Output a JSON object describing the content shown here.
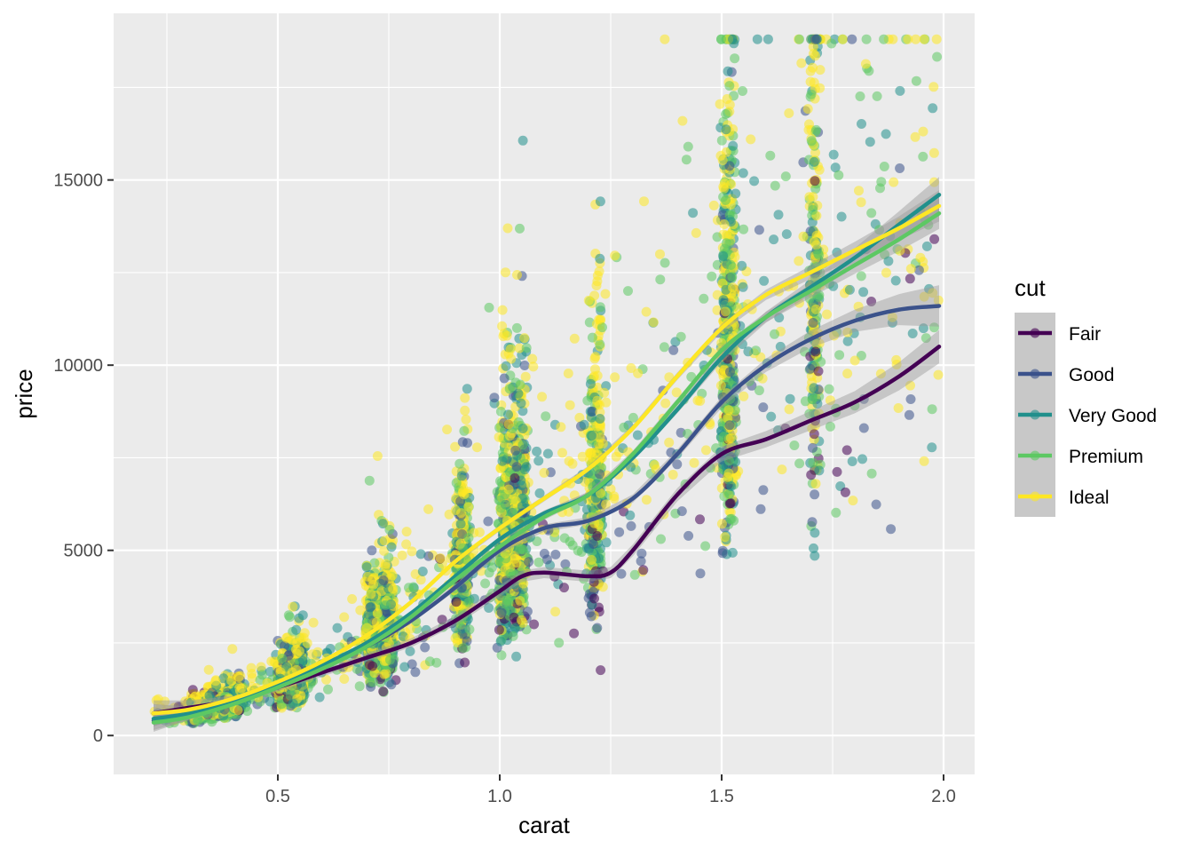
{
  "chart_data": {
    "type": "scatter",
    "xlabel": "carat",
    "ylabel": "price",
    "xlim": [
      0.13,
      2.07
    ],
    "ylim": [
      -1050,
      19500
    ],
    "x_ticks": [
      0.5,
      1.0,
      1.5,
      2.0
    ],
    "x_tick_labels": [
      "0.5",
      "1.0",
      "1.5",
      "2.0"
    ],
    "y_ticks": [
      0,
      5000,
      10000,
      15000
    ],
    "y_tick_labels": [
      "0",
      "5000",
      "10000",
      "15000"
    ],
    "grid": true,
    "legend": {
      "title": "cut",
      "position": "right",
      "entries": [
        {
          "label": "Fair",
          "color": "#440154"
        },
        {
          "label": "Good",
          "color": "#3b528b"
        },
        {
          "label": "Very Good",
          "color": "#21908c"
        },
        {
          "label": "Premium",
          "color": "#5dc863"
        },
        {
          "label": "Ideal",
          "color": "#fde725"
        }
      ]
    },
    "series": [
      {
        "name": "Fair",
        "color": "#440154",
        "smooth": {
          "x": [
            0.22,
            0.3,
            0.4,
            0.5,
            0.6,
            0.7,
            0.8,
            0.9,
            1.0,
            1.05,
            1.1,
            1.2,
            1.25,
            1.3,
            1.4,
            1.5,
            1.6,
            1.7,
            1.8,
            1.9,
            1.99
          ],
          "y": [
            600,
            750,
            950,
            1300,
            1700,
            2100,
            2500,
            3100,
            3900,
            4300,
            4400,
            4300,
            4400,
            5000,
            6500,
            7600,
            8000,
            8500,
            9000,
            9700,
            10500
          ]
        },
        "band_halfwidth": [
          350,
          200,
          120,
          110,
          110,
          110,
          120,
          130,
          150,
          150,
          150,
          150,
          150,
          160,
          180,
          200,
          220,
          260,
          300,
          380,
          450
        ]
      },
      {
        "name": "Good",
        "color": "#3b528b",
        "smooth": {
          "x": [
            0.22,
            0.3,
            0.4,
            0.5,
            0.6,
            0.7,
            0.8,
            0.9,
            1.0,
            1.1,
            1.2,
            1.3,
            1.4,
            1.5,
            1.6,
            1.7,
            1.8,
            1.9,
            1.99
          ],
          "y": [
            400,
            550,
            900,
            1300,
            1850,
            2400,
            3100,
            4000,
            5000,
            5600,
            5800,
            6400,
            7600,
            9000,
            10000,
            10700,
            11200,
            11500,
            11600
          ]
        },
        "band_halfwidth": [
          300,
          120,
          80,
          70,
          70,
          70,
          80,
          90,
          100,
          100,
          100,
          110,
          120,
          150,
          180,
          230,
          300,
          420,
          560
        ]
      },
      {
        "name": "Very Good",
        "color": "#21908c",
        "smooth": {
          "x": [
            0.22,
            0.3,
            0.4,
            0.5,
            0.6,
            0.7,
            0.8,
            0.9,
            1.0,
            1.1,
            1.2,
            1.3,
            1.4,
            1.5,
            1.6,
            1.7,
            1.8,
            1.9,
            1.99
          ],
          "y": [
            450,
            600,
            950,
            1400,
            1900,
            2500,
            3300,
            4300,
            5300,
            6000,
            6500,
            7500,
            8800,
            10200,
            11300,
            12100,
            12900,
            13800,
            14600
          ]
        },
        "band_halfwidth": [
          200,
          80,
          50,
          50,
          50,
          50,
          60,
          70,
          80,
          80,
          80,
          90,
          100,
          120,
          150,
          200,
          260,
          360,
          480
        ]
      },
      {
        "name": "Premium",
        "color": "#5dc863",
        "smooth": {
          "x": [
            0.22,
            0.3,
            0.4,
            0.5,
            0.6,
            0.7,
            0.8,
            0.9,
            1.0,
            1.1,
            1.2,
            1.3,
            1.4,
            1.5,
            1.6,
            1.7,
            1.8,
            1.9,
            1.99
          ],
          "y": [
            350,
            500,
            850,
            1300,
            1800,
            2400,
            3200,
            4200,
            5100,
            5900,
            6500,
            7600,
            9000,
            10400,
            11300,
            12000,
            12700,
            13400,
            14100
          ]
        },
        "band_halfwidth": [
          200,
          80,
          50,
          50,
          50,
          50,
          60,
          70,
          80,
          80,
          80,
          90,
          100,
          110,
          140,
          180,
          230,
          320,
          420
        ]
      },
      {
        "name": "Ideal",
        "color": "#fde725",
        "smooth": {
          "x": [
            0.22,
            0.3,
            0.4,
            0.5,
            0.6,
            0.7,
            0.8,
            0.9,
            1.0,
            1.1,
            1.2,
            1.3,
            1.4,
            1.5,
            1.6,
            1.7,
            1.8,
            1.9,
            1.99
          ],
          "y": [
            600,
            700,
            1000,
            1450,
            2000,
            2700,
            3600,
            4700,
            5600,
            6400,
            7200,
            8300,
            9700,
            11000,
            11900,
            12500,
            13100,
            13700,
            14300
          ]
        },
        "band_halfwidth": [
          250,
          80,
          50,
          50,
          50,
          50,
          60,
          70,
          80,
          80,
          80,
          90,
          100,
          110,
          140,
          180,
          230,
          320,
          420
        ]
      }
    ],
    "scatter_summary": {
      "note_points": "Approximately 12000 diamonds (carat 0.2–2.0) drawn as semi-transparent points colored by cut; point cloud approximated procedurally.",
      "point_alpha": 0.55
    }
  }
}
